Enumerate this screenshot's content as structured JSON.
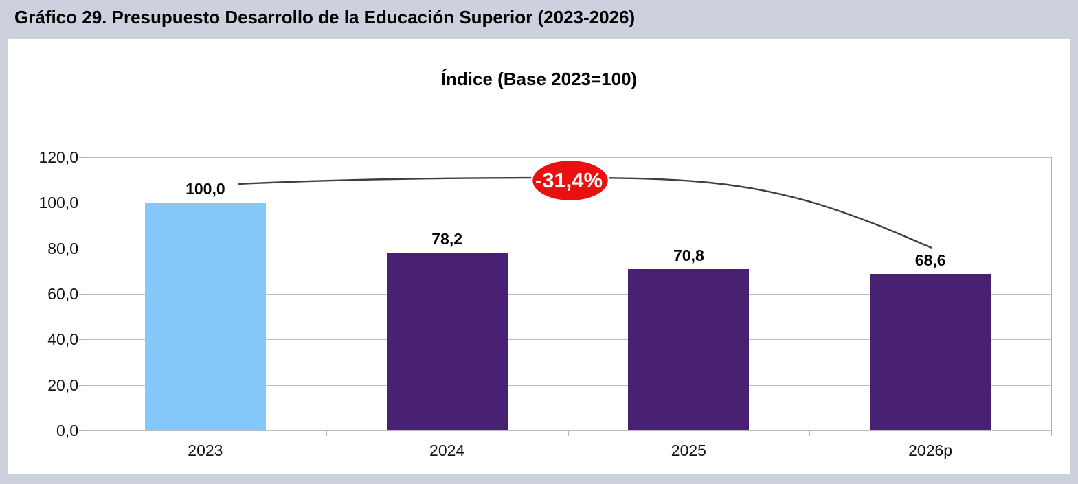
{
  "header": {
    "title": "Gráfico 29. Presupuesto Desarrollo de la Educación Superior (2023-2026)"
  },
  "chart_data": {
    "type": "bar",
    "title": "Índice (Base 2023=100)",
    "categories": [
      "2023",
      "2024",
      "2025",
      "2026p"
    ],
    "values": [
      100.0,
      78.2,
      70.8,
      68.6
    ],
    "value_labels": [
      "100,0",
      "78,2",
      "70,8",
      "68,6"
    ],
    "bar_colors": [
      "#84c9fa",
      "#482173",
      "#482173",
      "#482173"
    ],
    "ylim": [
      0,
      120
    ],
    "ytick_step": 20,
    "ytick_labels": [
      "0,0",
      "20,0",
      "40,0",
      "60,0",
      "80,0",
      "100,0",
      "120,0"
    ],
    "grid": true,
    "legend": "none",
    "annotation": {
      "label": "-31,4%",
      "shape": "ellipse",
      "fill_color": "#ec0f0f",
      "border_color": "#ffffff",
      "text_color": "#ffffff",
      "line_color": "#3f3f3f"
    }
  }
}
